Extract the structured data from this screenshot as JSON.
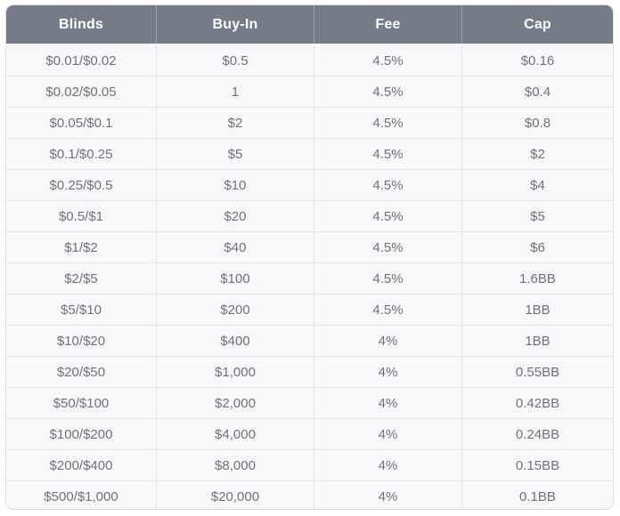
{
  "table": {
    "headers": [
      "Blinds",
      "Buy-In",
      "Fee",
      "Cap"
    ],
    "rows": [
      [
        "$0.01/$0.02",
        "$0.5",
        "4.5%",
        "$0.16"
      ],
      [
        "$0.02/$0.05",
        "1",
        "4.5%",
        "$0.4"
      ],
      [
        "$0.05/$0.1",
        "$2",
        "4.5%",
        "$0.8"
      ],
      [
        "$0.1/$0.25",
        "$5",
        "4.5%",
        "$2"
      ],
      [
        "$0.25/$0.5",
        "$10",
        "4.5%",
        "$4"
      ],
      [
        "$0.5/$1",
        "$20",
        "4.5%",
        "$5"
      ],
      [
        "$1/$2",
        "$40",
        "4.5%",
        "$6"
      ],
      [
        "$2/$5",
        "$100",
        "4.5%",
        "1.6BB"
      ],
      [
        "$5/$10",
        "$200",
        "4.5%",
        "1BB"
      ],
      [
        "$10/$20",
        "$400",
        "4%",
        "1BB"
      ],
      [
        "$20/$50",
        "$1,000",
        "4%",
        "0.55BB"
      ],
      [
        "$50/$100",
        "$2,000",
        "4%",
        "0.42BB"
      ],
      [
        "$100/$200",
        "$4,000",
        "4%",
        "0.24BB"
      ],
      [
        "$200/$400",
        "$8,000",
        "4%",
        "0.15BB"
      ],
      [
        "$500/$1,000",
        "$20,000",
        "4%",
        "0.1BB"
      ]
    ]
  },
  "colors": {
    "header_bg": "#757b87",
    "header_text": "#ffffff",
    "header_divider": "#9aa0a9",
    "row_bg": "#f8f8fa",
    "cell_text": "#6e737b",
    "border": "#e4e4e8",
    "page_bg": "#ffffff"
  },
  "chart_data": {
    "type": "table",
    "title": "",
    "columns": [
      "Blinds",
      "Buy-In",
      "Fee",
      "Cap"
    ],
    "rows": [
      [
        "$0.01/$0.02",
        "$0.5",
        "4.5%",
        "$0.16"
      ],
      [
        "$0.02/$0.05",
        "1",
        "4.5%",
        "$0.4"
      ],
      [
        "$0.05/$0.1",
        "$2",
        "4.5%",
        "$0.8"
      ],
      [
        "$0.1/$0.25",
        "$5",
        "4.5%",
        "$2"
      ],
      [
        "$0.25/$0.5",
        "$10",
        "4.5%",
        "$4"
      ],
      [
        "$0.5/$1",
        "$20",
        "4.5%",
        "$5"
      ],
      [
        "$1/$2",
        "$40",
        "4.5%",
        "$6"
      ],
      [
        "$2/$5",
        "$100",
        "4.5%",
        "1.6BB"
      ],
      [
        "$5/$10",
        "$200",
        "4.5%",
        "1BB"
      ],
      [
        "$10/$20",
        "$400",
        "4%",
        "1BB"
      ],
      [
        "$20/$50",
        "$1,000",
        "4%",
        "0.55BB"
      ],
      [
        "$50/$100",
        "$2,000",
        "4%",
        "0.42BB"
      ],
      [
        "$100/$200",
        "$4,000",
        "4%",
        "0.24BB"
      ],
      [
        "$200/$400",
        "$8,000",
        "4%",
        "0.15BB"
      ],
      [
        "$500/$1,000",
        "$20,000",
        "4%",
        "0.1BB"
      ]
    ]
  }
}
